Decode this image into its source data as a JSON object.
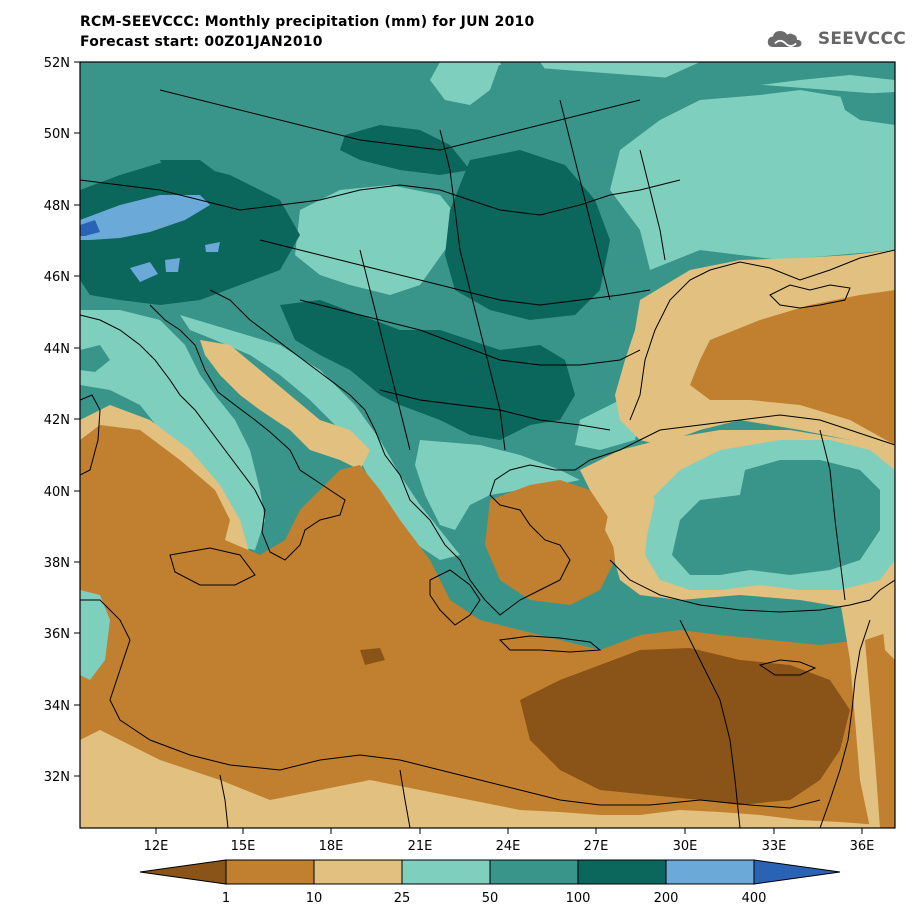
{
  "header": {
    "title": "RCM-SEEVCCC: Monthly precipitation (mm) for JUN 2010",
    "subtitle": "Forecast start: 00Z01JAN2010"
  },
  "logo": {
    "text": "SEEVCCC",
    "icon": "cloud-icon"
  },
  "map": {
    "lat_labels": [
      "52N",
      "50N",
      "48N",
      "46N",
      "44N",
      "42N",
      "40N",
      "38N",
      "36N",
      "34N",
      "32N"
    ],
    "lon_labels": [
      "12E",
      "15E",
      "18E",
      "21E",
      "24E",
      "27E",
      "30E",
      "33E",
      "36E"
    ]
  },
  "colorbar": {
    "thresholds": [
      "1",
      "10",
      "25",
      "50",
      "100",
      "200",
      "400"
    ],
    "colors": [
      "#8a5318",
      "#c0802f",
      "#e2c07f",
      "#7fcfbf",
      "#399589",
      "#0b665c",
      "#6aa9d8",
      "#2b63b4"
    ]
  },
  "palette": {
    "dry_dark": "#8a5318",
    "dry": "#c0802f",
    "tan": "#e2c07f",
    "aqua": "#7fcfbf",
    "teal": "#399589",
    "teal_dark": "#0b665c",
    "blue_light": "#6aa9d8",
    "blue": "#2b63b4"
  }
}
